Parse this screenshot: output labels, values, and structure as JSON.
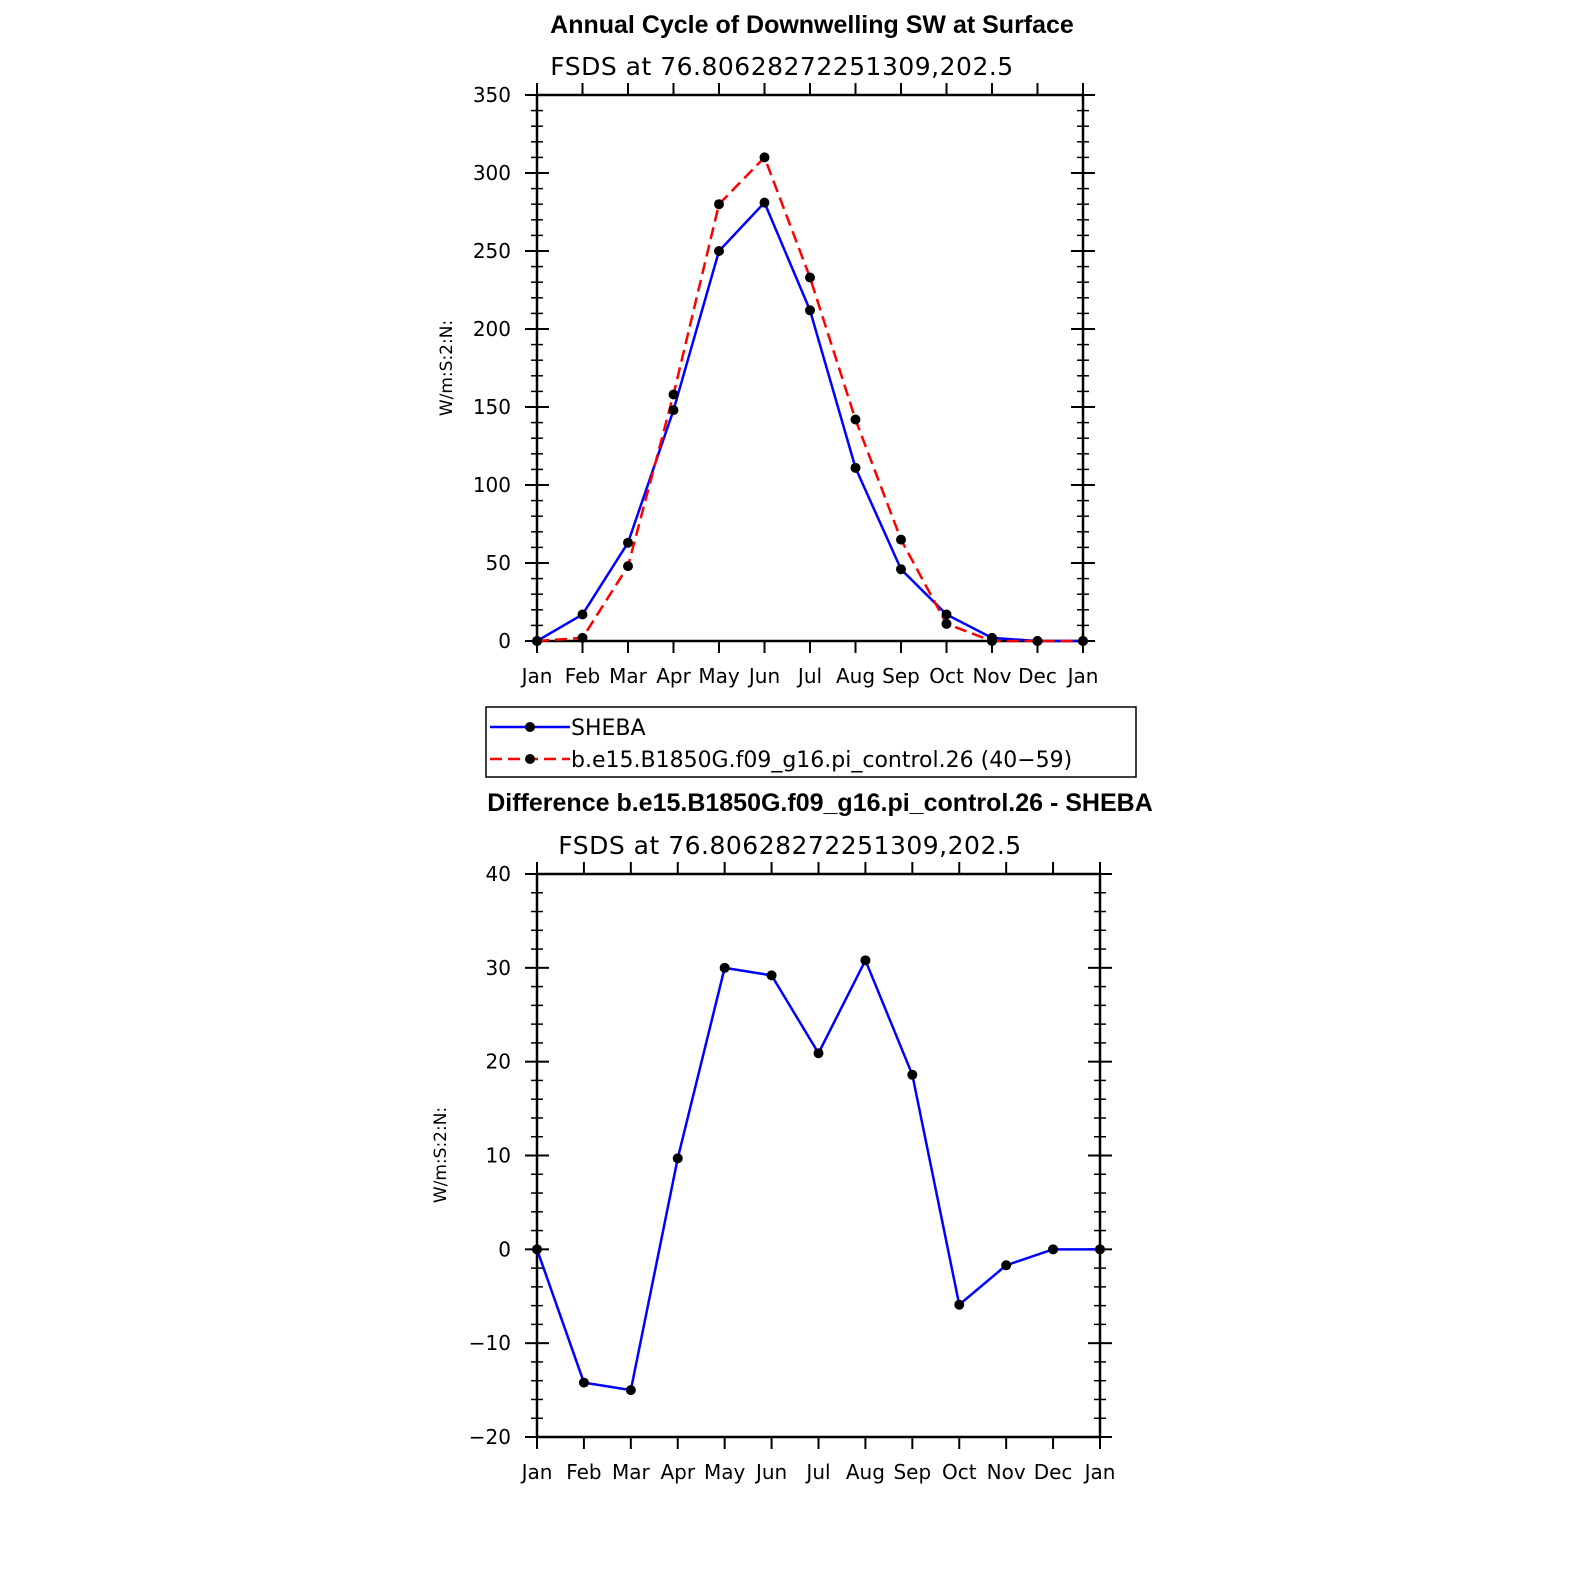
{
  "colors": {
    "sheba": "#0000ff",
    "model": "#ff0000",
    "marker": "#000000",
    "axis": "#000000"
  },
  "legend": {
    "entries": [
      {
        "label": "SHEBA",
        "color": "#0000ff",
        "dash": "solid"
      },
      {
        "label": "b.e15.B1850G.f09_g16.pi_control.26 (40−59)",
        "color": "#ff0000",
        "dash": "dashed"
      }
    ]
  },
  "chart_data": [
    {
      "type": "line",
      "title": "Annual Cycle of Downwelling SW at Surface",
      "subtitle": "FSDS at 76.80628272251309,202.5",
      "xlabel": "",
      "ylabel": "W/m:S:2:N:",
      "categories": [
        "Jan",
        "Feb",
        "Mar",
        "Apr",
        "May",
        "Jun",
        "Jul",
        "Aug",
        "Sep",
        "Oct",
        "Nov",
        "Dec",
        "Jan"
      ],
      "ylim": [
        0,
        350
      ],
      "yticks": [
        0,
        50,
        100,
        150,
        200,
        250,
        300,
        350
      ],
      "series": [
        {
          "name": "SHEBA",
          "values": [
            0,
            17,
            63,
            148,
            250,
            281,
            212,
            111,
            46,
            17,
            2,
            0,
            0
          ],
          "color": "#0000ff",
          "dash": "solid"
        },
        {
          "name": "b.e15.B1850G.f09_g16.pi_control.26 (40−59)",
          "values": [
            0,
            2,
            48,
            158,
            280,
            310,
            233,
            142,
            65,
            11,
            0,
            0,
            0
          ],
          "color": "#ff0000",
          "dash": "dashed"
        }
      ]
    },
    {
      "type": "line",
      "title": "Difference b.e15.B1850G.f09_g16.pi_control.26 - SHEBA",
      "subtitle": "FSDS at 76.80628272251309,202.5",
      "xlabel": "",
      "ylabel": "W/m:S:2:N:",
      "categories": [
        "Jan",
        "Feb",
        "Mar",
        "Apr",
        "May",
        "Jun",
        "Jul",
        "Aug",
        "Sep",
        "Oct",
        "Nov",
        "Dec",
        "Jan"
      ],
      "ylim": [
        -20,
        40
      ],
      "yticks": [
        -20,
        -10,
        0,
        10,
        20,
        30,
        40
      ],
      "ytick_labels": [
        "−20",
        "−10",
        "0",
        "10",
        "20",
        "30",
        "40"
      ],
      "series": [
        {
          "values": [
            0,
            -14.2,
            -15,
            9.7,
            30,
            29.2,
            20.9,
            30.8,
            18.6,
            -5.9,
            -1.7,
            0,
            0
          ],
          "color": "#0000ff",
          "dash": "solid"
        }
      ]
    }
  ]
}
